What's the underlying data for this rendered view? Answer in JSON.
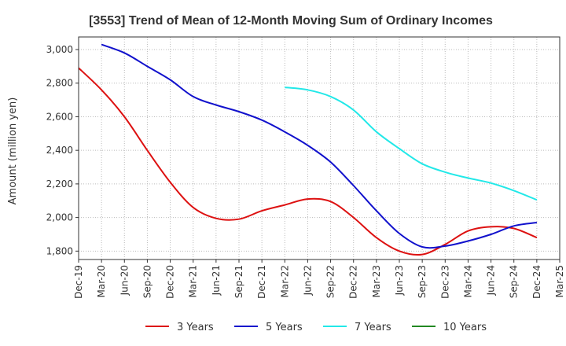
{
  "chart_data": {
    "type": "line",
    "title": "[3553]  Trend of Mean of 12-Month Moving Sum of Ordinary Incomes",
    "xlabel": "",
    "ylabel": "Amount (million yen)",
    "ylim": [
      1750,
      3075
    ],
    "yticks": [
      1800,
      2000,
      2200,
      2400,
      2600,
      2800,
      3000
    ],
    "ytick_labels": [
      "1,800",
      "2,000",
      "2,200",
      "2,400",
      "2,600",
      "2,800",
      "3,000"
    ],
    "xticks": [
      "Dec-19",
      "Mar-20",
      "Jun-20",
      "Sep-20",
      "Dec-20",
      "Mar-21",
      "Jun-21",
      "Sep-21",
      "Dec-21",
      "Mar-22",
      "Jun-22",
      "Sep-22",
      "Dec-22",
      "Mar-23",
      "Jun-23",
      "Sep-23",
      "Dec-23",
      "Mar-24",
      "Jun-24",
      "Sep-24",
      "Dec-24",
      "Mar-25"
    ],
    "grid": true,
    "legend_position": "bottom",
    "series": [
      {
        "name": "3 Years",
        "color": "#dd1111",
        "points": [
          [
            0,
            2890
          ],
          [
            1,
            2760
          ],
          [
            2,
            2600
          ],
          [
            3,
            2400
          ],
          [
            4,
            2210
          ],
          [
            5,
            2060
          ],
          [
            6,
            1995
          ],
          [
            7,
            1990
          ],
          [
            8,
            2040
          ],
          [
            9,
            2075
          ],
          [
            10,
            2110
          ],
          [
            11,
            2095
          ],
          [
            12,
            2000
          ],
          [
            13,
            1880
          ],
          [
            14,
            1800
          ],
          [
            15,
            1780
          ],
          [
            16,
            1840
          ],
          [
            17,
            1920
          ],
          [
            18,
            1945
          ],
          [
            19,
            1935
          ],
          [
            20,
            1880
          ]
        ]
      },
      {
        "name": "5 Years",
        "color": "#1111cc",
        "points": [
          [
            1,
            3030
          ],
          [
            2,
            2980
          ],
          [
            3,
            2900
          ],
          [
            4,
            2820
          ],
          [
            5,
            2720
          ],
          [
            6,
            2670
          ],
          [
            7,
            2630
          ],
          [
            8,
            2580
          ],
          [
            9,
            2510
          ],
          [
            10,
            2430
          ],
          [
            11,
            2330
          ],
          [
            12,
            2190
          ],
          [
            13,
            2040
          ],
          [
            14,
            1905
          ],
          [
            15,
            1825
          ],
          [
            16,
            1830
          ],
          [
            17,
            1860
          ],
          [
            18,
            1900
          ],
          [
            19,
            1950
          ],
          [
            20,
            1970
          ]
        ]
      },
      {
        "name": "7 Years",
        "color": "#22e8e8",
        "points": [
          [
            9,
            2775
          ],
          [
            10,
            2760
          ],
          [
            11,
            2720
          ],
          [
            12,
            2640
          ],
          [
            13,
            2510
          ],
          [
            14,
            2410
          ],
          [
            15,
            2320
          ],
          [
            16,
            2270
          ],
          [
            17,
            2235
          ],
          [
            18,
            2205
          ],
          [
            19,
            2160
          ],
          [
            20,
            2105
          ]
        ]
      },
      {
        "name": "10 Years",
        "color": "#228822",
        "points": []
      }
    ]
  }
}
